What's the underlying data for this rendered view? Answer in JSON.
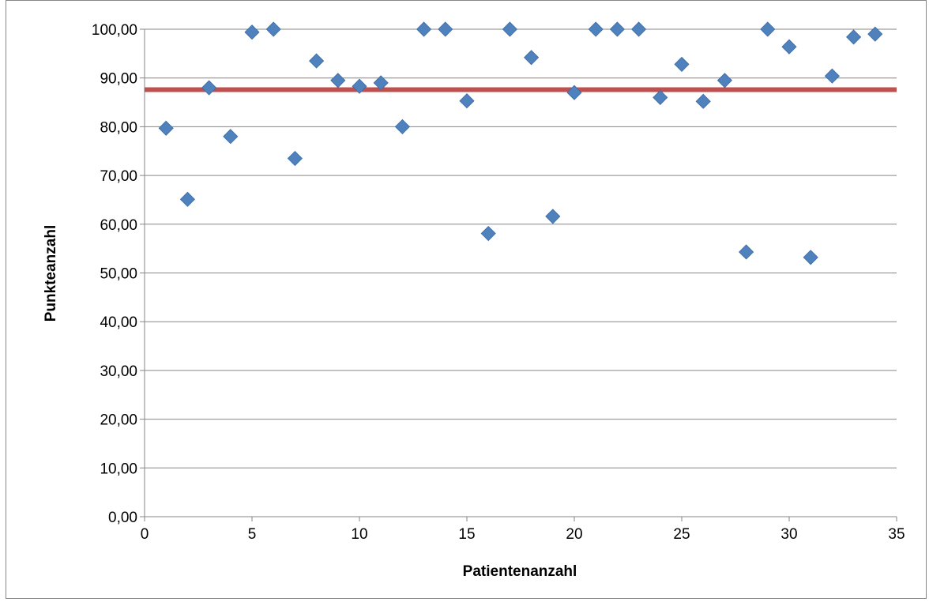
{
  "chart_data": {
    "type": "scatter",
    "title": "",
    "xlabel": "Patientenanzahl",
    "ylabel": "Punkteanzahl",
    "xlim": [
      0,
      35
    ],
    "ylim": [
      0,
      100
    ],
    "x_ticks": [
      "0",
      "5",
      "10",
      "15",
      "20",
      "25",
      "30",
      "35"
    ],
    "y_ticks": [
      "0,00",
      "10,00",
      "20,00",
      "30,00",
      "40,00",
      "50,00",
      "60,00",
      "70,00",
      "80,00",
      "90,00",
      "100,00"
    ],
    "grid": "horizontal",
    "legend": "none",
    "series": [
      {
        "color": "#4f81bd",
        "marker": "diamond",
        "x": [
          1,
          2,
          3,
          4,
          5,
          6,
          7,
          8,
          9,
          10,
          11,
          12,
          13,
          14,
          15,
          16,
          17,
          18,
          19,
          20,
          21,
          22,
          23,
          24,
          25,
          26,
          27,
          28,
          29,
          30,
          31,
          32,
          33,
          34
        ],
        "y": [
          79.7,
          65.1,
          88.0,
          78.0,
          99.4,
          100.0,
          73.5,
          93.5,
          89.5,
          88.3,
          89.0,
          80.0,
          100.0,
          100.0,
          85.3,
          58.1,
          100.0,
          94.2,
          61.6,
          87.0,
          100.0,
          100.0,
          100.0,
          86.0,
          92.8,
          85.2,
          89.5,
          54.3,
          100.0,
          96.4,
          53.2,
          90.4,
          98.4,
          99.0
        ]
      }
    ],
    "reference_lines": [
      {
        "orientation": "horizontal",
        "y": 87.6,
        "color": "#c0504d"
      }
    ]
  }
}
